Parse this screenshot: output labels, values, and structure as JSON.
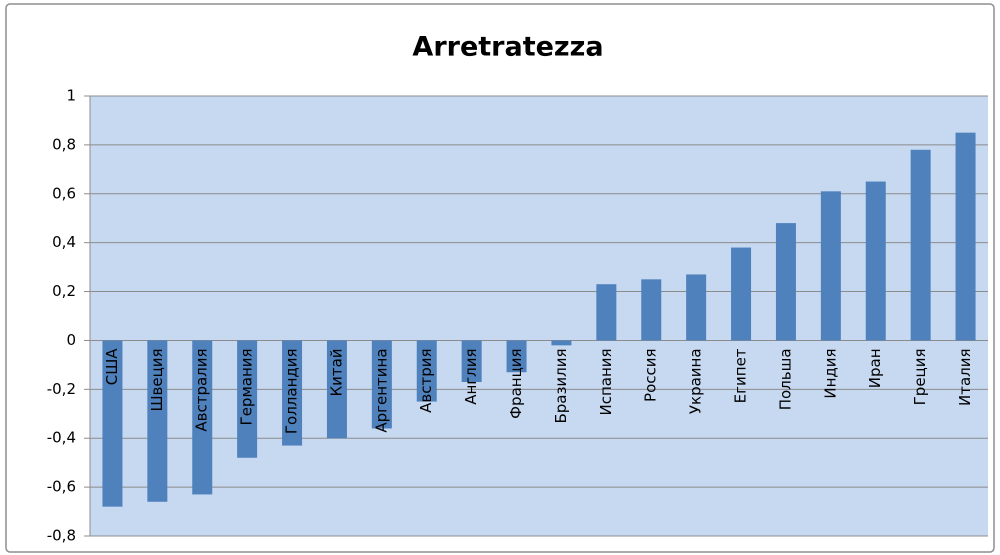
{
  "chart_data": {
    "type": "bar",
    "title": "Arretratezza",
    "categories": [
      "США",
      "Швеция",
      "Австралия",
      "Германия",
      "Голландия",
      "Китай",
      "Аргентина",
      "Австрия",
      "Англия",
      "Франция",
      "Бразилия",
      "Испания",
      "Россия",
      "Украина",
      "Египет",
      "Польша",
      "Индия",
      "Иран",
      "Греция",
      "Италия"
    ],
    "values": [
      -0.68,
      -0.66,
      -0.63,
      -0.48,
      -0.43,
      -0.4,
      -0.36,
      -0.25,
      -0.17,
      -0.13,
      -0.02,
      0.23,
      0.25,
      0.27,
      0.38,
      0.48,
      0.61,
      0.65,
      0.78,
      0.85
    ],
    "color": "#4f81bd",
    "ylim": [
      -0.8,
      1
    ],
    "yticks": [
      {
        "value": -0.8,
        "label": "-0,8"
      },
      {
        "value": -0.6,
        "label": "-0,6"
      },
      {
        "value": -0.4,
        "label": "-0,4"
      },
      {
        "value": -0.2,
        "label": "-0,2"
      },
      0,
      {
        "value": 0.2,
        "label": "0,2"
      },
      {
        "value": 0.4,
        "label": "0,4"
      },
      {
        "value": 0.6,
        "label": "0,6"
      },
      {
        "value": 0.8,
        "label": "0,8"
      },
      1
    ],
    "grid": true
  }
}
